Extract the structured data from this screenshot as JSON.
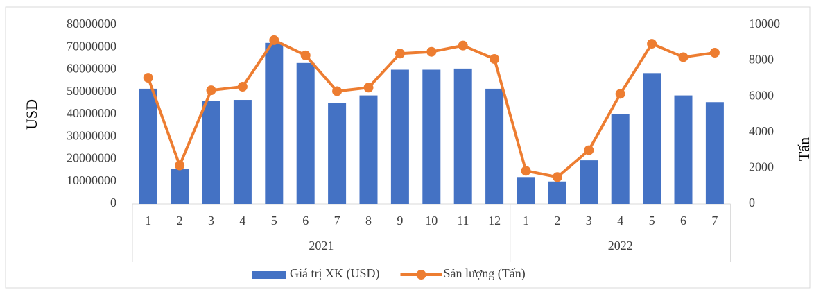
{
  "chart_data": {
    "type": "bar_line",
    "groups": [
      {
        "label": "2021",
        "categories": [
          "1",
          "2",
          "3",
          "4",
          "5",
          "6",
          "7",
          "8",
          "9",
          "10",
          "11",
          "12"
        ]
      },
      {
        "label": "2022",
        "categories": [
          "1",
          "2",
          "3",
          "4",
          "5",
          "6",
          "7"
        ]
      }
    ],
    "y_label": "USD",
    "y2_label": "Tấn",
    "ylim": [
      0,
      80000000
    ],
    "yticks": [
      0,
      10000000,
      20000000,
      30000000,
      40000000,
      50000000,
      60000000,
      70000000,
      80000000
    ],
    "y2lim": [
      0,
      10000
    ],
    "y2ticks": [
      0,
      2000,
      4000,
      6000,
      8000,
      10000
    ],
    "legend": "bottom",
    "series": [
      {
        "name": "Giá trị XK (USD)",
        "type": "bar",
        "color": "#4472c4",
        "values": [
          51500000,
          15500000,
          46000000,
          46500000,
          72000000,
          63000000,
          45000000,
          48500000,
          60000000,
          60000000,
          60500000,
          51500000,
          12000000,
          10000000,
          19500000,
          40000000,
          58500000,
          48500000,
          45500000
        ]
      },
      {
        "name": "Sản lượng (Tấn)",
        "type": "line",
        "axis": "y2",
        "color": "#ed7d31",
        "values": [
          7050,
          2150,
          6350,
          6550,
          9150,
          8300,
          6300,
          6500,
          8400,
          8500,
          8850,
          8100,
          1850,
          1500,
          3000,
          6150,
          8950,
          8200,
          8450
        ]
      }
    ]
  }
}
